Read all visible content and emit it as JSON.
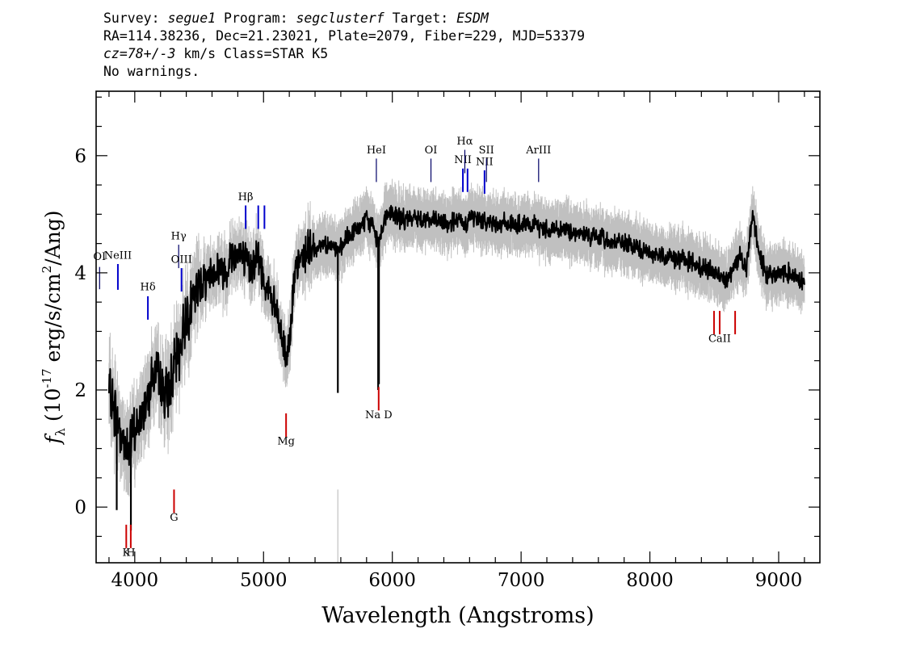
{
  "header": {
    "line1": {
      "survey_label": "Survey: ",
      "survey": "segue1",
      "program_label": " Program: ",
      "program": "segclusterf",
      "target_label": " Target: ",
      "target": "ESDM"
    },
    "line2": "RA=114.38236, Dec=21.23021, Plate=2079, Fiber=229, MJD=53379",
    "line3": {
      "cz": "cz=78+/-3",
      "rest": " km/s Class=STAR K5"
    },
    "line4": "No warnings."
  },
  "chart_data": {
    "type": "line",
    "xlabel": "Wavelength (Angstroms)",
    "ylabel_main": "f",
    "ylabel_sub": "λ",
    "ylabel_rest_a": " (10",
    "ylabel_exp1": "-17",
    "ylabel_rest_b": " erg/s/cm",
    "ylabel_exp2": "2",
    "ylabel_rest_c": "/Ang)",
    "xlim": [
      3700,
      9320
    ],
    "ylim": [
      -0.95,
      7.1
    ],
    "xticks": [
      4000,
      5000,
      6000,
      7000,
      8000,
      9000
    ],
    "xtick_labels": [
      "4000",
      "5000",
      "6000",
      "7000",
      "8000",
      "9000"
    ],
    "yticks": [
      0,
      2,
      4,
      6
    ],
    "ytick_labels": [
      "0",
      "2",
      "4",
      "6"
    ],
    "grid": false,
    "colors": {
      "flux": "#000000",
      "error": "#c0c0c0",
      "emission": "#0000cc",
      "emission_dark": "#000066",
      "absorption": "#cc0000"
    },
    "series": [
      {
        "role": "flux",
        "x": [
          3800,
          3850,
          3900,
          3950,
          4000,
          4050,
          4100,
          4150,
          4200,
          4250,
          4300,
          4350,
          4400,
          4450,
          4500,
          4550,
          4600,
          4650,
          4700,
          4750,
          4800,
          4850,
          4900,
          4950,
          5000,
          5050,
          5100,
          5150,
          5180,
          5200,
          5250,
          5300,
          5350,
          5400,
          5450,
          5500,
          5550,
          5600,
          5650,
          5700,
          5750,
          5800,
          5850,
          5890,
          5950,
          6000,
          6100,
          6200,
          6300,
          6400,
          6500,
          6563,
          6600,
          6700,
          6800,
          6900,
          7000,
          7100,
          7200,
          7300,
          7400,
          7500,
          7600,
          7700,
          7800,
          7900,
          8000,
          8100,
          8200,
          8300,
          8400,
          8500,
          8600,
          8700,
          8750,
          8800,
          8850,
          8900,
          9000,
          9100,
          9200
        ],
        "y": [
          2.0,
          1.6,
          1.2,
          1.0,
          1.3,
          1.5,
          2.0,
          2.3,
          2.1,
          1.9,
          2.3,
          2.7,
          3.3,
          3.5,
          3.8,
          3.9,
          4.0,
          4.1,
          4.0,
          4.3,
          4.4,
          4.2,
          4.1,
          4.3,
          3.9,
          3.6,
          3.3,
          2.8,
          2.5,
          3.0,
          4.0,
          4.3,
          4.4,
          4.4,
          4.5,
          4.5,
          4.4,
          4.4,
          4.6,
          4.7,
          4.8,
          4.9,
          4.8,
          4.5,
          5.0,
          5.0,
          4.9,
          4.95,
          4.9,
          4.85,
          4.9,
          4.8,
          4.95,
          4.9,
          4.85,
          4.85,
          4.8,
          4.8,
          4.75,
          4.75,
          4.7,
          4.65,
          4.6,
          4.55,
          4.5,
          4.4,
          4.35,
          4.3,
          4.25,
          4.2,
          4.1,
          4.0,
          3.9,
          4.3,
          4.1,
          5.0,
          4.3,
          4.0,
          4.0,
          4.0,
          3.85
        ]
      }
    ],
    "line_labels": [
      {
        "name": "OI",
        "x": 3727,
        "kind": "emission_dark",
        "y_top": 4.1,
        "y_bot": 3.72,
        "y_text": 4.22
      },
      {
        "name": "NeIII",
        "x": 3869,
        "kind": "emission",
        "y_top": 4.15,
        "y_bot": 3.71,
        "y_text": 4.24
      },
      {
        "name": "Hδ",
        "x": 4102,
        "kind": "emission",
        "y_top": 3.6,
        "y_bot": 3.2,
        "y_text": 3.7
      },
      {
        "name": "Hγ",
        "x": 4341,
        "kind": "emission_dark",
        "y_top": 4.48,
        "y_bot": 4.08,
        "y_text": 4.57
      },
      {
        "name": "OIII",
        "x": 4363,
        "kind": "emission",
        "y_top": 4.08,
        "y_bot": 3.68,
        "y_text": 4.17
      },
      {
        "name": "Hβ",
        "x": 4861,
        "kind": "emission",
        "y_top": 5.15,
        "y_bot": 4.75,
        "y_text": 5.24
      },
      {
        "name": "OIII",
        "x": 4959,
        "kind": "emission",
        "y_top": 5.15,
        "y_bot": 4.75
      },
      {
        "name": "",
        "x": 5007,
        "kind": "emission",
        "y_top": 5.15,
        "y_bot": 4.75,
        "y_text": 5.24
      },
      {
        "name": "HeI",
        "x": 5876,
        "kind": "emission_dark",
        "y_top": 5.95,
        "y_bot": 5.55,
        "y_text": 6.04
      },
      {
        "name": "OI",
        "x": 6300,
        "kind": "emission_dark",
        "y_top": 5.95,
        "y_bot": 5.55,
        "y_text": 6.04
      },
      {
        "name": "NII",
        "x": 6548,
        "kind": "emission",
        "y_top": 5.78,
        "y_bot": 5.38,
        "y_text": 5.87
      },
      {
        "name": "Hα",
        "x": 6563,
        "kind": "emission_dark",
        "y_top": 6.1,
        "y_bot": 5.7,
        "y_text": 6.19
      },
      {
        "name": "",
        "x": 6584,
        "kind": "emission",
        "y_top": 5.78,
        "y_bot": 5.38
      },
      {
        "name": "NII",
        "x": 6716,
        "kind": "emission",
        "y_top": 5.75,
        "y_bot": 5.35,
        "y_text": 5.84
      },
      {
        "name": "SII",
        "x": 6731,
        "kind": "emission_dark",
        "y_top": 5.95,
        "y_bot": 5.55,
        "y_text": 6.04
      },
      {
        "name": "ArIII",
        "x": 7136,
        "kind": "emission_dark",
        "y_top": 5.95,
        "y_bot": 5.55,
        "y_text": 6.04
      },
      {
        "name": "K",
        "x": 3934,
        "kind": "absorption",
        "y_top": -0.3,
        "y_bot": -0.7,
        "y_text": -0.83
      },
      {
        "name": "H",
        "x": 3969,
        "kind": "absorption",
        "y_top": -0.3,
        "y_bot": -0.7,
        "y_text": -0.83
      },
      {
        "name": "G",
        "x": 4305,
        "kind": "absorption",
        "y_top": 0.3,
        "y_bot": -0.1,
        "y_text": -0.23
      },
      {
        "name": "Mg",
        "x": 5175,
        "kind": "absorption",
        "y_top": 1.6,
        "y_bot": 1.2,
        "y_text": 1.07
      },
      {
        "name": "Na D",
        "x": 5894,
        "kind": "absorption",
        "y_top": 2.05,
        "y_bot": 1.65,
        "y_text": 1.52
      },
      {
        "name": "",
        "x": 8498,
        "kind": "absorption",
        "y_top": 3.35,
        "y_bot": 2.95
      },
      {
        "name": "CaII",
        "x": 8542,
        "kind": "absorption",
        "y_top": 3.35,
        "y_bot": 2.95,
        "y_text": 2.82
      },
      {
        "name": "",
        "x": 8662,
        "kind": "absorption",
        "y_top": 3.35,
        "y_bot": 2.95
      }
    ]
  }
}
